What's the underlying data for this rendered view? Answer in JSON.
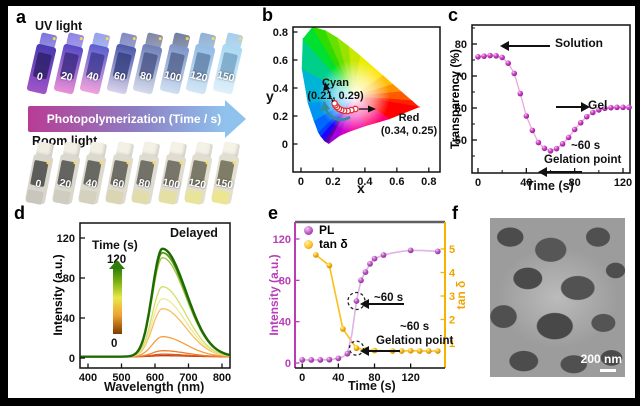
{
  "panels": {
    "a": "a",
    "b": "b",
    "c": "c",
    "d": "d",
    "e": "e",
    "f": "f"
  },
  "panel_a": {
    "uv_label": "UV light",
    "room_label": "Room light",
    "arrow_label": "Photopolymerization (Time / s)",
    "arrow_colors": {
      "start": "#b93b94",
      "mid": "#8d7ec2",
      "end": "#8fc3ee"
    },
    "times": [
      "0",
      "20",
      "40",
      "60",
      "80",
      "100",
      "120",
      "150"
    ],
    "uv_vials": [
      {
        "cap": "#7b74da",
        "top": "#4a3ab0",
        "bottom": "#a055c8",
        "window": "#2a1f66"
      },
      {
        "cap": "#8c82e2",
        "top": "#5948c6",
        "bottom": "#ea8fd6",
        "window": "#3a2a80"
      },
      {
        "cap": "#93a2e8",
        "top": "#5a5fd0",
        "bottom": "#f0a2dc",
        "window": "#3c3a92"
      },
      {
        "cap": "#8088c0",
        "top": "#4c58aa",
        "bottom": "#d8d2ea",
        "window": "#323e7e"
      },
      {
        "cap": "#7e86a6",
        "top": "#7080b8",
        "bottom": "#d4daea",
        "window": "#4a5588"
      },
      {
        "cap": "#6f7d9c",
        "top": "#7e95c6",
        "bottom": "#cfdff2",
        "window": "#51628c"
      },
      {
        "cap": "#8fb0d4",
        "top": "#93bce4",
        "bottom": "#d2e6f6",
        "window": "#5f7ea6"
      },
      {
        "cap": "#a5cdec",
        "top": "#a9d7f2",
        "bottom": "#dff0fa",
        "window": "#74a2c4"
      }
    ],
    "room_vials": [
      {
        "cap": "#efece2",
        "glass": "#d8d6cc",
        "liquid": "#c9c7bd",
        "window": "#3f3f3f"
      },
      {
        "cap": "#f1eee4",
        "glass": "#dbd9cd",
        "liquid": "#cfcdbf",
        "window": "#464646"
      },
      {
        "cap": "#f2efe5",
        "glass": "#dcdacd",
        "liquid": "#d4d2bd",
        "window": "#4c4c4a"
      },
      {
        "cap": "#f3f0e6",
        "glass": "#dddbce",
        "liquid": "#dad6b4",
        "window": "#52524c"
      },
      {
        "cap": "#f3f0e6",
        "glass": "#dedcd0",
        "liquid": "#e0dcab",
        "window": "#58584e"
      },
      {
        "cap": "#f4f1e7",
        "glass": "#e0dccf",
        "liquid": "#e4e0a4",
        "window": "#5e5c50"
      },
      {
        "cap": "#f4f1e7",
        "glass": "#e1ddcf",
        "liquid": "#e8e49c",
        "window": "#62604e"
      },
      {
        "cap": "#f5f2e8",
        "glass": "#e2dfd0",
        "liquid": "#ece691",
        "window": "#66644c"
      }
    ]
  },
  "chart_data": {
    "b": {
      "type": "scatter",
      "xlabel": "x",
      "ylabel": "y",
      "xticks": [
        0,
        0.2,
        0.4,
        0.6,
        0.8
      ],
      "yticks": [
        0,
        0.2,
        0.4,
        0.6,
        0.8
      ],
      "xlim": [
        -0.05,
        0.87
      ],
      "ylim": [
        -0.2,
        0.84
      ],
      "points": [
        [
          0.34,
          0.25
        ],
        [
          0.315,
          0.242
        ],
        [
          0.292,
          0.236
        ],
        [
          0.27,
          0.237
        ],
        [
          0.252,
          0.243
        ],
        [
          0.237,
          0.252
        ],
        [
          0.225,
          0.264
        ],
        [
          0.215,
          0.277
        ],
        [
          0.21,
          0.29
        ]
      ],
      "point_style": {
        "fill": "#ffffff",
        "stroke": "#e03131"
      },
      "annotations": {
        "cyan_label": "Cyan",
        "cyan_coords": "(0.21, 0.29)",
        "red_label": "Red",
        "red_coords": "(0.34, 0.25)"
      }
    },
    "c": {
      "type": "line+scatter",
      "xlabel": "Time (s)",
      "ylabel": "Transparency (%)",
      "xticks": [
        0,
        40,
        80,
        120
      ],
      "xminor": [
        20,
        60,
        100
      ],
      "yticks": [
        50,
        60,
        70,
        80
      ],
      "yminor": [
        45,
        55,
        65,
        75,
        85
      ],
      "xlim": [
        -5,
        126
      ],
      "ylim": [
        39.7,
        86
      ],
      "marker_color": "#a916a9",
      "line_color": "#eda6db",
      "points": [
        [
          0,
          76
        ],
        [
          5,
          76.2
        ],
        [
          10,
          76.4
        ],
        [
          15,
          76.3
        ],
        [
          20,
          75.8
        ],
        [
          25,
          74
        ],
        [
          30,
          70.8
        ],
        [
          35,
          64.5
        ],
        [
          40,
          57.5
        ],
        [
          45,
          53
        ],
        [
          50,
          49.2
        ],
        [
          55,
          47.4
        ],
        [
          60,
          46.6
        ],
        [
          65,
          47.3
        ],
        [
          70,
          48.8
        ],
        [
          75,
          50.8
        ],
        [
          80,
          53.3
        ],
        [
          85,
          55.4
        ],
        [
          90,
          57.3
        ],
        [
          95,
          58.6
        ],
        [
          100,
          59.4
        ],
        [
          105,
          59.9
        ],
        [
          110,
          60.1
        ],
        [
          115,
          60.2
        ],
        [
          120,
          60.2
        ],
        [
          125,
          60.2
        ]
      ],
      "annotations": {
        "solution": "Solution",
        "gel": "Gel",
        "time": "~60 s",
        "gelation": "Gelation point"
      }
    },
    "d": {
      "type": "line",
      "corner_label": "Delayed",
      "legend_title": "Time (s)",
      "legend_max": "120",
      "legend_min": "0",
      "xlabel": "Wavelength (nm)",
      "ylabel": "Intensity (a.u.)",
      "xticks": [
        400,
        500,
        600,
        700,
        800
      ],
      "yticks": [
        0,
        40,
        80,
        120
      ],
      "xlim": [
        376,
        824
      ],
      "ylim": [
        -10,
        135
      ],
      "peak_nm": 622,
      "series": [
        {
          "time": 0,
          "peak": 1,
          "color": "#b84310"
        },
        {
          "time": 10,
          "peak": 2.5,
          "color": "#e2571b"
        },
        {
          "time": 20,
          "peak": 6,
          "color": "#ef7d28"
        },
        {
          "time": 30,
          "peak": 20,
          "color": "#f59e42"
        },
        {
          "time": 40,
          "peak": 48,
          "color": "#f6bd62"
        },
        {
          "time": 50,
          "peak": 58,
          "color": "#f2e896"
        },
        {
          "time": 60,
          "peak": 70,
          "color": "#cfdf6a"
        },
        {
          "time": 80,
          "peak": 99,
          "color": "#a0c63c"
        },
        {
          "time": 100,
          "peak": 104,
          "color": "#569410"
        },
        {
          "time": 120,
          "peak": 108,
          "color": "#1e6b06"
        }
      ]
    },
    "e": {
      "type": "dual-axis line+scatter",
      "xlabel": "Time (s)",
      "ylabel_left": "Intensity (a.u.)",
      "ylabel_right": "tan δ",
      "left_color": "#b83db8",
      "right_color": "#f0a500",
      "xticks": [
        0,
        40,
        80,
        120
      ],
      "yticks_left": [
        0,
        40,
        80,
        120
      ],
      "yticks_right": [
        1,
        2,
        3,
        4,
        5
      ],
      "xlim": [
        -8,
        158
      ],
      "ylim_left": [
        0,
        136
      ],
      "ylim_right": [
        0.65,
        5.8
      ],
      "legend": {
        "pl": "PL",
        "tan": "tan δ"
      },
      "pl_line": [
        [
          0,
          3
        ],
        [
          10,
          3
        ],
        [
          20,
          3
        ],
        [
          30,
          3.2
        ],
        [
          40,
          4.5
        ],
        [
          45,
          6
        ],
        [
          50,
          9
        ],
        [
          55,
          28
        ],
        [
          60,
          60
        ],
        [
          65,
          80
        ],
        [
          70,
          88
        ],
        [
          75,
          96
        ],
        [
          80,
          101
        ],
        [
          90,
          104.5
        ],
        [
          100,
          106.5
        ],
        [
          110,
          108
        ],
        [
          120,
          109
        ],
        [
          135,
          108.8
        ],
        [
          150,
          108
        ]
      ],
      "pl_markers": [
        [
          0,
          3
        ],
        [
          10,
          3
        ],
        [
          20,
          3
        ],
        [
          30,
          3.2
        ],
        [
          40,
          4.5
        ],
        [
          50,
          9
        ],
        [
          60,
          60
        ],
        [
          65,
          80
        ],
        [
          70,
          88
        ],
        [
          75,
          96
        ],
        [
          80,
          101
        ],
        [
          90,
          104.5
        ],
        [
          120,
          109
        ],
        [
          150,
          108
        ]
      ],
      "tan_markers": [
        [
          15,
          4.75
        ],
        [
          30,
          4.3
        ],
        [
          45,
          1.6
        ],
        [
          60,
          0.78
        ],
        [
          70,
          0.7
        ],
        [
          80,
          0.68
        ],
        [
          100,
          0.66
        ],
        [
          110,
          0.66
        ],
        [
          120,
          0.67
        ],
        [
          130,
          0.66
        ],
        [
          140,
          0.66
        ],
        [
          150,
          0.66
        ]
      ],
      "circled": {
        "pl": [
          60,
          60
        ],
        "tan": [
          60,
          0.78
        ]
      },
      "annotations": {
        "time1": "~60 s",
        "time2": "~60 s",
        "gelation": "Gelation point"
      }
    }
  },
  "panel_f": {
    "scalebar_label": "200 nm"
  }
}
